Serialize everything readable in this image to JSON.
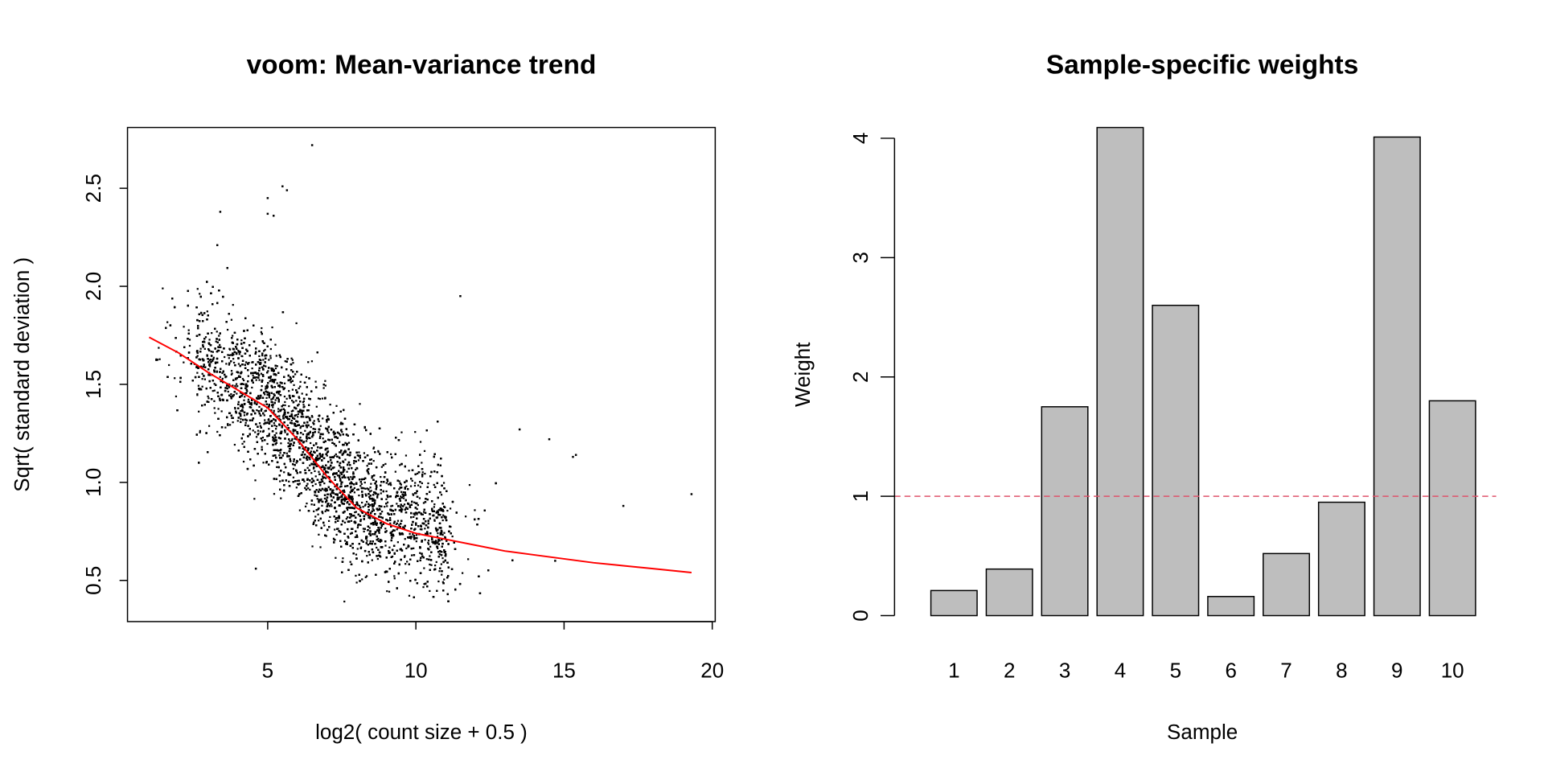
{
  "chart_data": [
    {
      "type": "scatter",
      "title": "voom: Mean-variance trend",
      "xlabel": "log2( count size + 0.5 )",
      "ylabel": "Sqrt( standard deviation )",
      "xlim": [
        0.27,
        20.1
      ],
      "ylim": [
        0.29,
        2.81
      ],
      "xticks": [
        "5",
        "10",
        "15",
        "20"
      ],
      "yticks": [
        "0.5",
        "1.0",
        "1.5",
        "2.0",
        "2.5"
      ],
      "grid": false,
      "point_color": "#000000",
      "trend_color": "#FF0000",
      "trend": {
        "x": [
          1,
          2,
          3,
          4,
          5,
          6,
          7,
          8,
          9,
          10,
          11,
          12,
          13,
          14,
          15,
          16,
          17,
          18,
          19.3
        ],
        "y": [
          1.74,
          1.66,
          1.56,
          1.47,
          1.38,
          1.22,
          1.03,
          0.87,
          0.79,
          0.74,
          0.71,
          0.68,
          0.65,
          0.63,
          0.61,
          0.59,
          0.575,
          0.56,
          0.54
        ]
      },
      "notable_points": {
        "x": [
          6.5,
          5.5,
          5.65,
          5.0,
          5.0,
          5.2,
          3.4,
          3.3,
          11.5,
          19.3,
          17.0,
          15.4,
          15.3,
          14.5,
          13.5,
          14.7,
          4.6
        ],
        "y": [
          2.72,
          2.51,
          2.49,
          2.45,
          2.37,
          2.36,
          2.38,
          2.21,
          1.95,
          0.94,
          0.88,
          1.14,
          1.13,
          1.22,
          1.27,
          0.6,
          0.56
        ]
      }
    },
    {
      "type": "bar",
      "title": "Sample-specific weights",
      "xlabel": "Sample",
      "ylabel": "Weight",
      "categories": [
        "1",
        "2",
        "3",
        "4",
        "5",
        "6",
        "7",
        "8",
        "9",
        "10"
      ],
      "values": [
        0.21,
        0.39,
        1.75,
        4.09,
        2.6,
        0.16,
        0.52,
        0.95,
        4.01,
        1.8
      ],
      "ylim": [
        0,
        4.09
      ],
      "yticks": [
        "0",
        "1",
        "2",
        "3",
        "4"
      ],
      "bar_color": "#BEBEBE",
      "reference_line": {
        "y": 1,
        "style": "dashed",
        "color": "#DF536B"
      }
    }
  ]
}
